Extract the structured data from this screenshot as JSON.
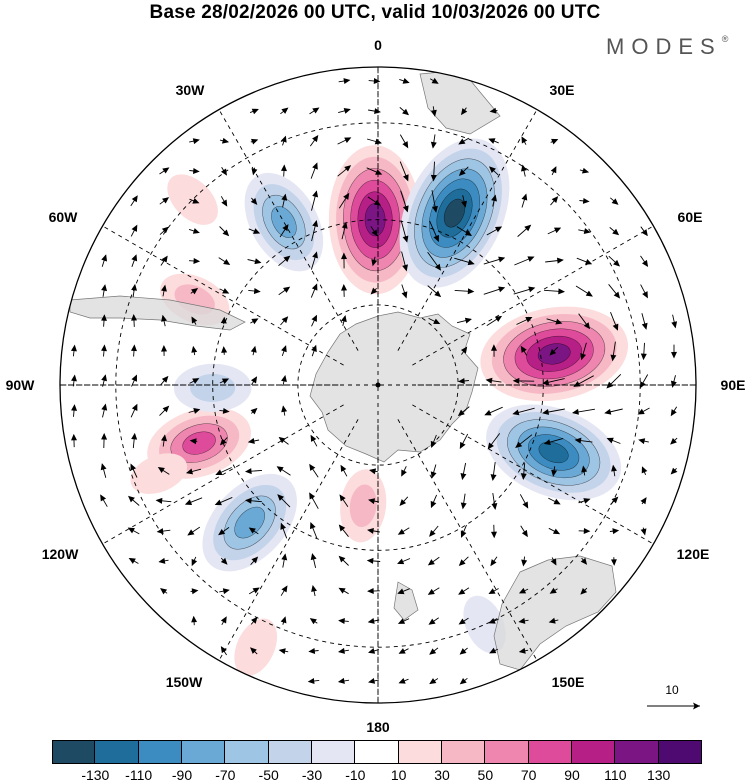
{
  "title": "Base 28/02/2026 00 UTC, valid 10/03/2026 00 UTC",
  "brand": {
    "name": "MODES",
    "mark": "®"
  },
  "map": {
    "projection": "south-polar-stereographic",
    "longitude_labels": {
      "lon_0": "0",
      "lon_30e": "30E",
      "lon_60e": "60E",
      "lon_90e": "90E",
      "lon_120e": "120E",
      "lon_150e": "150E",
      "lon_180": "180",
      "lon_150w": "150W",
      "lon_120w": "120W",
      "lon_90w": "90W",
      "lon_60w": "60W",
      "lon_30w": "30W"
    },
    "reference_vector_label": "10",
    "anomaly_centers": [
      {
        "id": "a1",
        "lon": -1,
        "lat": -50,
        "value": 125
      },
      {
        "id": "a2",
        "lon": 24,
        "lat": -45,
        "value": -135
      },
      {
        "id": "a3",
        "lon": 80,
        "lat": -47,
        "value": 125
      },
      {
        "id": "a4",
        "lon": 111,
        "lat": -45,
        "value": -115
      },
      {
        "id": "a5",
        "lon": -173,
        "lat": -60,
        "value": 35
      },
      {
        "id": "a6",
        "lon": -137,
        "lat": -45,
        "value": -85
      },
      {
        "id": "a7",
        "lon": -108,
        "lat": -45,
        "value": 75
      },
      {
        "id": "a8",
        "lon": -91,
        "lat": -50,
        "value": -40
      },
      {
        "id": "a9",
        "lon": -65,
        "lat": -42,
        "value": 35
      },
      {
        "id": "a10",
        "lon": -30,
        "lat": -45,
        "value": -75
      },
      {
        "id": "a11",
        "lon": -45,
        "lat": -30,
        "value": 20
      },
      {
        "id": "a12",
        "lon": 156,
        "lat": -30,
        "value": -20
      },
      {
        "id": "a13",
        "lon": -155,
        "lat": -25,
        "value": 20
      },
      {
        "id": "a14",
        "lon": -112,
        "lat": -35,
        "value": 18
      }
    ]
  },
  "colorbar": {
    "tick_labels": [
      "-130",
      "-110",
      "-90",
      "-70",
      "-50",
      "-30",
      "-10",
      "10",
      "30",
      "50",
      "70",
      "90",
      "110",
      "130"
    ],
    "colors": [
      "#1f4a63",
      "#1f6d9a",
      "#3c8cc2",
      "#6aa9d5",
      "#9fc5e5",
      "#c3d3ea",
      "#e4e6f3",
      "#ffffff",
      "#fcdcdc",
      "#f7b8c6",
      "#ef86b0",
      "#de4b9b",
      "#b51f86",
      "#7b1583",
      "#4e0a70"
    ]
  }
}
